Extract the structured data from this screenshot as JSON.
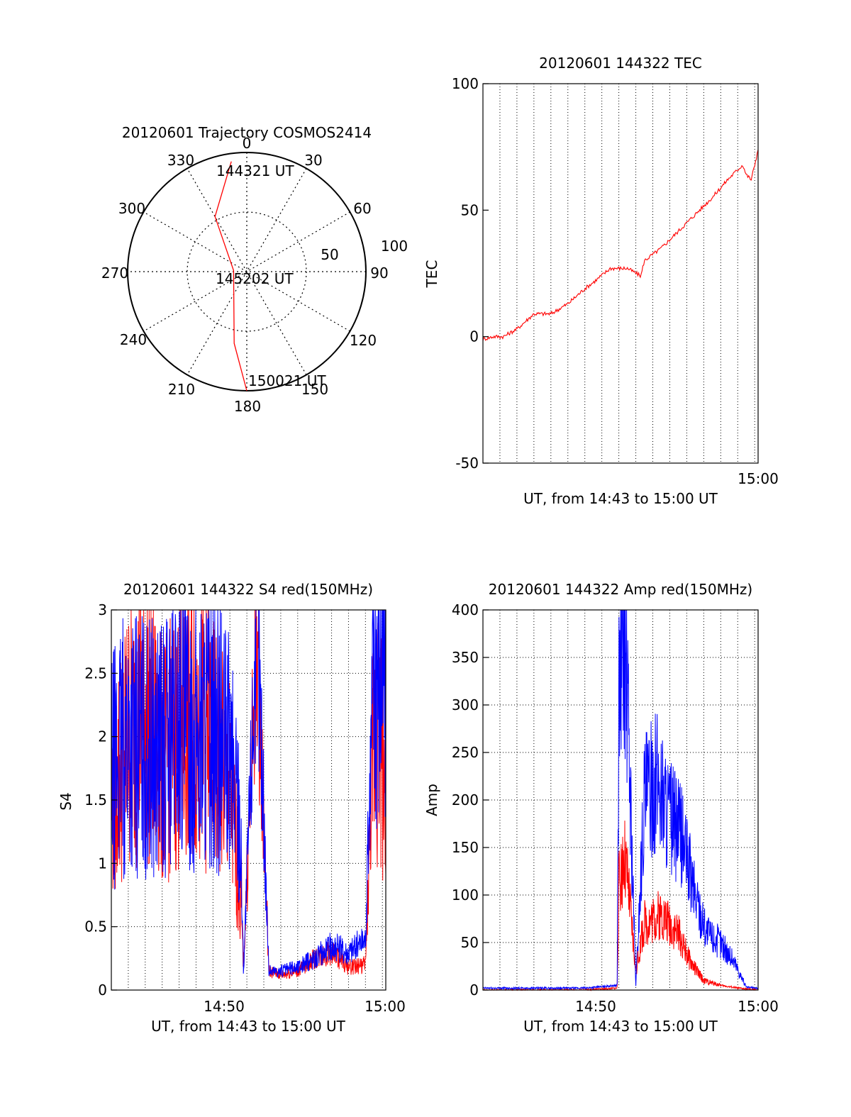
{
  "colors": {
    "red": "#ff0000",
    "blue": "#0000ff",
    "axis": "#000000",
    "grid": "#000000"
  },
  "chart_data": [
    {
      "type": "polar",
      "title": "20120601 Trajectory COSMOS2414",
      "angle_labels": [
        "0",
        "30",
        "60",
        "90",
        "120",
        "150",
        "180",
        "210",
        "240",
        "270",
        "300",
        "330"
      ],
      "radial_labels": [
        "50",
        "100"
      ],
      "point_labels": [
        "144321 UT",
        "145202 UT",
        "150021 UT"
      ],
      "trajectory": [
        {
          "azimuth": 352,
          "zenith": 84
        },
        {
          "azimuth": 330,
          "zenith": 48
        },
        {
          "azimuth": 275,
          "zenith": 10
        },
        {
          "azimuth": 190,
          "zenith": 55
        },
        {
          "azimuth": 180,
          "zenith": 90
        }
      ]
    },
    {
      "type": "line",
      "title": "20120601 144322 TEC",
      "xlabel": "UT, from 14:43 to 15:00 UT",
      "ylabel": "TEC",
      "x_tick_labels": [
        "15:00"
      ],
      "y_tick_labels": [
        "-50",
        "0",
        "50",
        "100"
      ],
      "ylim": [
        -50,
        100
      ],
      "grid": true,
      "series": [
        {
          "color": "red",
          "x": [
            0,
            0.6,
            1.2,
            2,
            3,
            4,
            5,
            6,
            6.6,
            7.5,
            8.5,
            9.3,
            9.5,
            10.5,
            12,
            13.5,
            14.4,
            15.3,
            15.5,
            15.8,
            16.0,
            16.2
          ],
          "values": [
            -1,
            0,
            0,
            3,
            9,
            9,
            13,
            19,
            22,
            27,
            27,
            24,
            30,
            35,
            45,
            55,
            62,
            68,
            64,
            62,
            68,
            74
          ]
        }
      ]
    },
    {
      "type": "line",
      "title": "20120601 144322 S4 red(150MHz)",
      "xlabel": "UT, from 14:43 to 15:00 UT",
      "ylabel": "S4",
      "x_tick_labels": [
        "14:50",
        "15:00"
      ],
      "y_tick_labels": [
        "0",
        "0.5",
        "1",
        "1.5",
        "2",
        "2.5",
        "3"
      ],
      "ylim": [
        0,
        3
      ],
      "grid": true,
      "series": [
        {
          "color": "red",
          "x": [
            0,
            1,
            2,
            3,
            4,
            5,
            6,
            7,
            7.6,
            7.8,
            8.6,
            9.3,
            10,
            11,
            12,
            13,
            14,
            15,
            15.5,
            15.8,
            16.1
          ],
          "values": [
            1.5,
            2.0,
            2.2,
            1.8,
            2.0,
            2.2,
            1.9,
            1.6,
            0.8,
            0.2,
            2.8,
            0.15,
            0.12,
            0.15,
            0.25,
            0.3,
            0.18,
            0.2,
            2.0,
            2.2,
            1.6
          ]
        },
        {
          "color": "blue",
          "x": [
            0,
            1,
            2,
            3,
            4,
            5,
            6,
            7,
            7.6,
            7.8,
            8.6,
            9.3,
            10,
            11,
            12,
            13,
            14,
            15,
            15.5,
            15.8,
            16.1
          ],
          "values": [
            1.7,
            2.0,
            1.9,
            1.9,
            2.1,
            2.0,
            2.1,
            1.8,
            1.4,
            0.15,
            3.0,
            0.15,
            0.15,
            0.18,
            0.25,
            0.35,
            0.3,
            0.4,
            2.8,
            2.7,
            2.5
          ]
        }
      ]
    },
    {
      "type": "line",
      "title": "20120601 144322 Amp red(150MHz)",
      "xlabel": "UT, from 14:43 to 15:00 UT",
      "ylabel": "Amp",
      "x_tick_labels": [
        "14:50",
        "15:00"
      ],
      "y_tick_labels": [
        "0",
        "50",
        "100",
        "150",
        "200",
        "250",
        "300",
        "350",
        "400"
      ],
      "ylim": [
        0,
        400
      ],
      "grid": true,
      "series": [
        {
          "color": "red",
          "x": [
            0,
            6.0,
            7.9,
            8.0,
            8.3,
            8.6,
            9.0,
            9.5,
            10.5,
            11.5,
            12.2,
            13,
            14,
            15,
            16.2
          ],
          "values": [
            0,
            0,
            2,
            110,
            140,
            100,
            20,
            70,
            80,
            60,
            30,
            10,
            5,
            2,
            0
          ]
        },
        {
          "color": "blue",
          "x": [
            0,
            6.0,
            7.9,
            8.0,
            8.3,
            8.6,
            9.0,
            9.5,
            10.3,
            11.0,
            11.7,
            12.5,
            13.2,
            14,
            14.8,
            15.5,
            16.2
          ],
          "values": [
            2,
            2,
            5,
            300,
            390,
            250,
            5,
            200,
            220,
            180,
            160,
            100,
            60,
            50,
            30,
            3,
            2
          ]
        }
      ]
    }
  ]
}
